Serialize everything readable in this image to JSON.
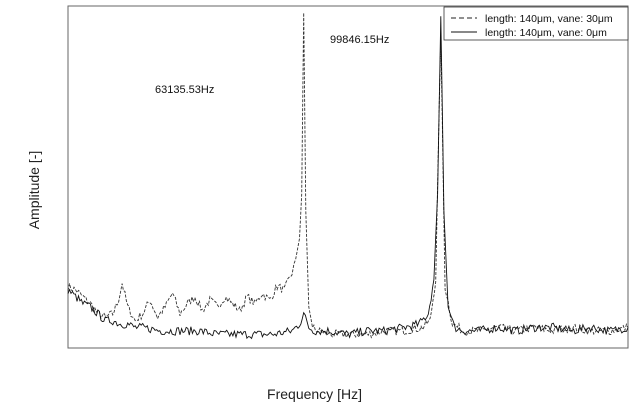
{
  "chart_data": {
    "type": "line",
    "title": "",
    "xlabel": "Frequency [Hz]",
    "ylabel": "Amplitude [-]",
    "xlim": [
      0,
      150000
    ],
    "ylim": [
      0,
      1.0
    ],
    "grid": false,
    "ticks_visible": false,
    "legend_position": "top-right",
    "annotations": [
      {
        "text": "63135.53Hz",
        "x": 63135.53,
        "series": 0
      },
      {
        "text": "99846.15Hz",
        "x": 99846.15,
        "series": 1
      }
    ],
    "series": [
      {
        "name": "length: 140μm, vane: 30μm",
        "style": "dashed",
        "color": "#333333",
        "peak_x": 63135.53,
        "peak_y": 0.98,
        "x": [
          0,
          2000,
          4000,
          6000,
          8000,
          10000,
          12000,
          13500,
          14500,
          16000,
          18000,
          20000,
          22000,
          24000,
          26000,
          28000,
          30000,
          32000,
          34000,
          36000,
          38000,
          40000,
          42000,
          44000,
          46000,
          48000,
          50000,
          52000,
          54000,
          56000,
          58000,
          60000,
          61000,
          62000,
          62600,
          63135.53,
          63700,
          64500,
          65500,
          67000,
          70000,
          75000,
          80000,
          85000,
          90000,
          95000,
          97000,
          98500,
          99846.15,
          101000,
          103000,
          106000,
          110000,
          115000,
          120000,
          125000,
          130000,
          135000,
          140000,
          145000,
          150000
        ],
        "y": [
          0.18,
          0.17,
          0.15,
          0.13,
          0.1,
          0.09,
          0.1,
          0.14,
          0.19,
          0.12,
          0.08,
          0.1,
          0.14,
          0.09,
          0.12,
          0.16,
          0.1,
          0.13,
          0.15,
          0.11,
          0.14,
          0.12,
          0.15,
          0.13,
          0.11,
          0.15,
          0.13,
          0.16,
          0.14,
          0.18,
          0.17,
          0.22,
          0.26,
          0.32,
          0.45,
          0.98,
          0.4,
          0.12,
          0.06,
          0.05,
          0.04,
          0.04,
          0.04,
          0.05,
          0.05,
          0.06,
          0.08,
          0.2,
          0.92,
          0.18,
          0.07,
          0.05,
          0.05,
          0.06,
          0.05,
          0.06,
          0.05,
          0.06,
          0.05,
          0.05,
          0.06
        ]
      },
      {
        "name": "length: 140μm, vane: 0μm",
        "style": "solid",
        "color": "#111111",
        "peak_x": 99846.15,
        "peak_y": 0.97,
        "x": [
          0,
          2000,
          4000,
          6000,
          8000,
          10000,
          12000,
          14000,
          16000,
          18000,
          20000,
          25000,
          30000,
          35000,
          40000,
          45000,
          50000,
          55000,
          60000,
          62000,
          63135.53,
          64500,
          66000,
          70000,
          75000,
          80000,
          85000,
          90000,
          94000,
          96500,
          98000,
          99000,
          99846.15,
          100700,
          101800,
          103500,
          106000,
          110000,
          115000,
          120000,
          125000,
          130000,
          135000,
          140000,
          145000,
          150000
        ],
        "y": [
          0.17,
          0.15,
          0.13,
          0.12,
          0.1,
          0.08,
          0.08,
          0.07,
          0.07,
          0.06,
          0.06,
          0.05,
          0.05,
          0.05,
          0.04,
          0.04,
          0.04,
          0.04,
          0.05,
          0.07,
          0.1,
          0.06,
          0.05,
          0.05,
          0.04,
          0.05,
          0.05,
          0.06,
          0.07,
          0.1,
          0.2,
          0.45,
          0.97,
          0.4,
          0.12,
          0.06,
          0.05,
          0.05,
          0.06,
          0.05,
          0.06,
          0.06,
          0.05,
          0.06,
          0.05,
          0.06
        ]
      }
    ]
  }
}
